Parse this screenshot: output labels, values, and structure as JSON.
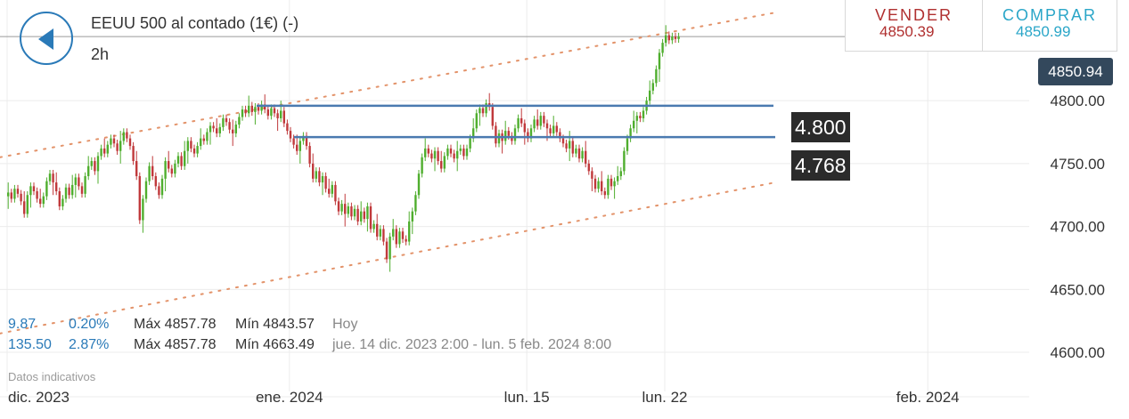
{
  "header": {
    "title": "EEUU 500 al contado (1€) (-)",
    "interval": "2h"
  },
  "trade": {
    "sell_label": "VENDER",
    "sell_price": "4850.39",
    "buy_label": "COMPRAR",
    "buy_price": "4850.99"
  },
  "current_price_label": "4850.94",
  "levels": {
    "upper": "4.800",
    "lower": "4.768"
  },
  "stats": {
    "row1": {
      "change": "9.87",
      "pct": "0.20%",
      "max": "Máx 4857.78",
      "min": "Mín 4843.57",
      "period": "Hoy"
    },
    "row2": {
      "change": "135.50",
      "pct": "2.87%",
      "max": "Máx 4857.78",
      "min": "Mín 4663.49",
      "period": "jue. 14 dic. 2023 2:00 - lun. 5 feb. 2024 8:00"
    }
  },
  "disclaimer": "Datos indicativos",
  "colors": {
    "up": "#4fae2e",
    "down": "#c0393b",
    "level_line": "#4a7ab0",
    "channel": "#e3936a",
    "accent": "#2a7ab8"
  },
  "chart_data": {
    "type": "candlestick",
    "y_ticks": [
      "4600.00",
      "4650.00",
      "4700.00",
      "4750.00",
      "4800.00"
    ],
    "ylim": [
      4576,
      4880
    ],
    "x_labels": [
      {
        "label": "dic. 2023",
        "bar": 0
      },
      {
        "label": "ene. 2024",
        "bar": 88
      },
      {
        "label": "lun. 15",
        "bar": 162
      },
      {
        "label": "lun. 22",
        "bar": 205
      },
      {
        "label": "feb. 2024",
        "bar": 287
      }
    ],
    "x_total_bars": 320,
    "closes": [
      4727,
      4722,
      4730,
      4726,
      4720,
      4710,
      4725,
      4732,
      4728,
      4722,
      4718,
      4724,
      4736,
      4742,
      4735,
      4728,
      4716,
      4722,
      4731,
      4725,
      4733,
      4739,
      4732,
      4726,
      4740,
      4748,
      4752,
      4744,
      4756,
      4762,
      4758,
      4765,
      4770,
      4766,
      4760,
      4768,
      4775,
      4770,
      4764,
      4752,
      4740,
      4705,
      4722,
      4736,
      4748,
      4740,
      4732,
      4725,
      4738,
      4752,
      4746,
      4742,
      4750,
      4756,
      4748,
      4760,
      4768,
      4762,
      4758,
      4764,
      4770,
      4768,
      4775,
      4780,
      4778,
      4774,
      4779,
      4786,
      4783,
      4777,
      4774,
      4781,
      4787,
      4793,
      4790,
      4796,
      4791,
      4795,
      4792,
      4797,
      4793,
      4788,
      4794,
      4790,
      4786,
      4792,
      4782,
      4776,
      4770,
      4765,
      4760,
      4768,
      4772,
      4764,
      4750,
      4738,
      4744,
      4735,
      4740,
      4730,
      4726,
      4733,
      4720,
      4712,
      4718,
      4710,
      4716,
      4708,
      4714,
      4704,
      4712,
      4706,
      4716,
      4698,
      4702,
      4692,
      4698,
      4688,
      4674,
      4692,
      4698,
      4686,
      4696,
      4690,
      4688,
      4704,
      4712,
      4725,
      4742,
      4755,
      4762,
      4758,
      4754,
      4760,
      4752,
      4746,
      4756,
      4762,
      4758,
      4754,
      4760,
      4762,
      4756,
      4762,
      4770,
      4778,
      4790,
      4794,
      4790,
      4798,
      4795,
      4780,
      4766,
      4774,
      4768,
      4776,
      4772,
      4768,
      4778,
      4786,
      4782,
      4775,
      4770,
      4778,
      4785,
      4780,
      4788,
      4782,
      4778,
      4774,
      4780,
      4775,
      4770,
      4766,
      4762,
      4768,
      4758,
      4762,
      4754,
      4760,
      4750,
      4744,
      4738,
      4730,
      4736,
      4728,
      4725,
      4738,
      4732,
      4736,
      4740,
      4744,
      4760,
      4770,
      4778,
      4784,
      4788,
      4786,
      4792,
      4800,
      4808,
      4814,
      4825,
      4838,
      4846,
      4852,
      4848,
      4851,
      4849,
      4850.94
    ]
  }
}
